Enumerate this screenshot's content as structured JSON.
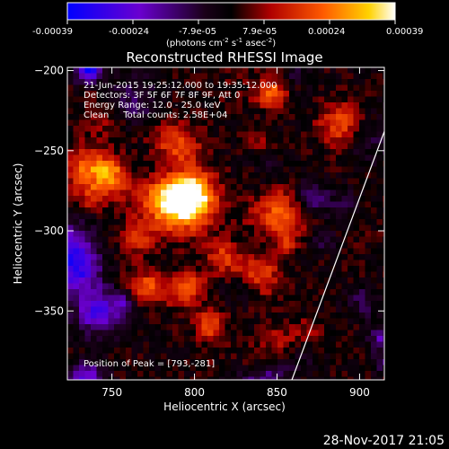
{
  "colorbar": {
    "ticks": [
      "-0.00039",
      "-0.00024",
      "-7.9e-05",
      "7.9e-05",
      "0.00024",
      "0.00039"
    ],
    "unit_main": "(photons cm",
    "unit_exp1": "-2",
    "unit_mid": " s",
    "unit_exp2": "-1",
    "unit_end": " asec",
    "unit_exp3": "-2",
    "unit_close": ")"
  },
  "chart_data": {
    "type": "heatmap",
    "title": "Reconstructed RHESSI Image",
    "xlabel": "Heliocentric X (arcsec)",
    "ylabel": "Heliocentric Y (arcsec)",
    "xlim": [
      723,
      915
    ],
    "ylim": [
      -393,
      -198
    ],
    "x_ticks": [
      750,
      800,
      850,
      900
    ],
    "y_ticks": [
      -200,
      -250,
      -300,
      -350
    ],
    "x_tick_labels": [
      "750",
      "800",
      "850",
      "900"
    ],
    "y_tick_labels": [
      "−200",
      "−250",
      "−300",
      "−350"
    ],
    "colormap": [
      "#0000ff",
      "#6a00d0",
      "#1a0018",
      "#000000",
      "#b00000",
      "#ff5a00",
      "#ffd200",
      "#ffffff"
    ],
    "value_range": [
      -0.00039,
      0.00039
    ],
    "peak": [
      793,
      -281
    ],
    "info_lines": [
      "21-Jun-2015 19:25:12.000 to 19:35:12.000",
      "Detectors: 3F 5F 6F 7F 8F 9F, Att 0",
      "Energy Range: 12.0 - 25.0 keV",
      "Clean     Total counts: 2.58E+04"
    ],
    "peak_label": "Position of Peak = [793,-281]",
    "limb_line": [
      [
        859,
        -393
      ],
      [
        915,
        -238
      ]
    ]
  },
  "footer": {
    "timestamp": "28-Nov-2017 21:05"
  }
}
